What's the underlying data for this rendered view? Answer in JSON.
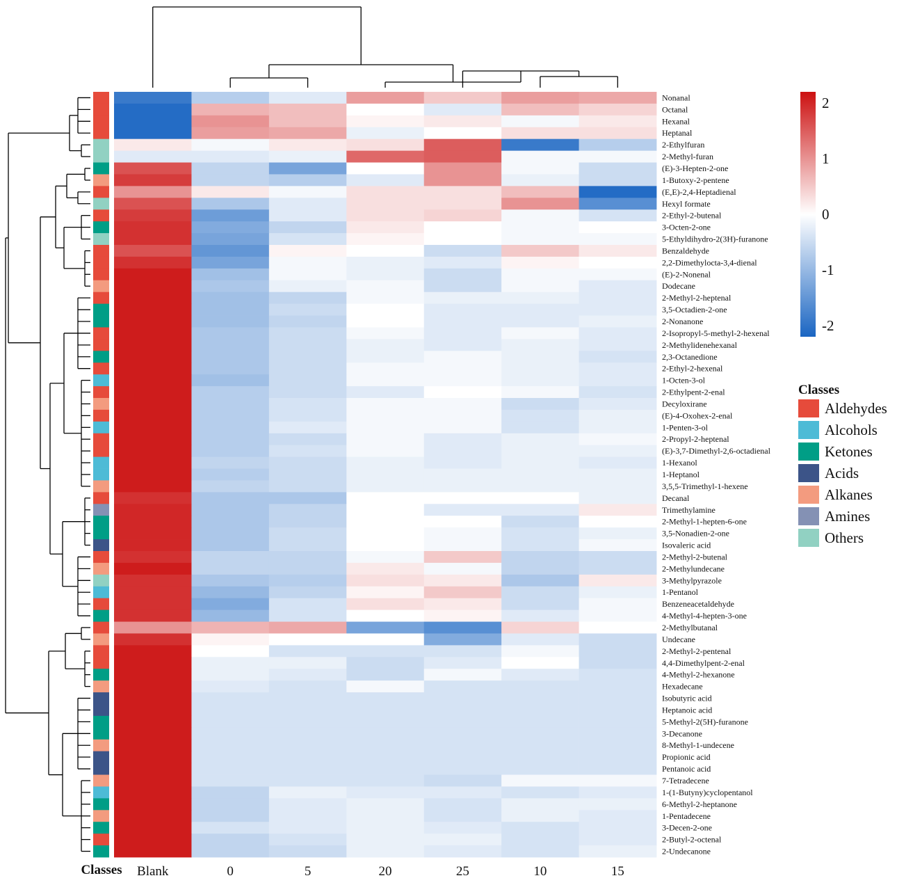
{
  "chart_data": {
    "type": "heatmap",
    "columns": [
      "Blank",
      "0",
      "5",
      "20",
      "25",
      "10",
      "15"
    ],
    "class_axis_label": "Classes",
    "rows": [
      {
        "name": "Nonanal",
        "class": "Aldehydes",
        "values": [
          -1.9,
          -0.7,
          -0.3,
          0.9,
          0.5,
          0.9,
          0.8
        ]
      },
      {
        "name": "Octanal",
        "class": "Aldehydes",
        "values": [
          -2.1,
          0.7,
          0.6,
          0.0,
          -0.3,
          0.6,
          0.4
        ]
      },
      {
        "name": "Hexanal",
        "class": "Aldehydes",
        "values": [
          -2.1,
          1.0,
          0.6,
          0.1,
          0.2,
          -0.1,
          0.2
        ]
      },
      {
        "name": "Heptanal",
        "class": "Aldehydes",
        "values": [
          -2.1,
          0.9,
          0.8,
          -0.2,
          0.0,
          0.3,
          0.3
        ]
      },
      {
        "name": "2-Ethylfuran",
        "class": "Others",
        "values": [
          0.2,
          -0.1,
          0.2,
          0.3,
          1.5,
          -1.9,
          -0.7
        ]
      },
      {
        "name": "2-Methyl-furan",
        "class": "Others",
        "values": [
          -0.3,
          -0.3,
          -0.2,
          1.4,
          1.5,
          -0.1,
          -0.1
        ]
      },
      {
        "name": "(E)-3-Hepten-2-one",
        "class": "Ketones",
        "values": [
          1.6,
          -0.6,
          -1.3,
          0.0,
          1.0,
          -0.1,
          -0.5
        ]
      },
      {
        "name": "1-Butoxy-2-pentene",
        "class": "Alkanes",
        "values": [
          1.8,
          -0.6,
          -0.7,
          -0.3,
          1.0,
          -0.2,
          -0.5
        ]
      },
      {
        "name": "(E,E)-2,4-Heptadienal",
        "class": "Aldehydes",
        "values": [
          1.0,
          0.2,
          -0.1,
          0.3,
          0.3,
          0.6,
          -2.1
        ]
      },
      {
        "name": "Hexyl formate",
        "class": "Others",
        "values": [
          1.6,
          -0.8,
          -0.3,
          0.3,
          0.3,
          1.0,
          -1.6
        ]
      },
      {
        "name": "2-Ethyl-2-butenal",
        "class": "Aldehydes",
        "values": [
          1.8,
          -1.4,
          -0.3,
          0.3,
          0.4,
          -0.1,
          -0.4
        ]
      },
      {
        "name": "3-Octen-2-one",
        "class": "Ketones",
        "values": [
          1.9,
          -1.2,
          -0.6,
          0.2,
          0.0,
          -0.1,
          0.0
        ]
      },
      {
        "name": "5-Ethyldihydro-2(3H)-furanone",
        "class": "Others",
        "values": [
          1.9,
          -1.3,
          -0.4,
          0.1,
          0.0,
          -0.1,
          -0.1
        ]
      },
      {
        "name": "Benzaldehyde",
        "class": "Aldehydes",
        "values": [
          1.6,
          -1.5,
          0.1,
          0.0,
          -0.5,
          0.5,
          0.2
        ]
      },
      {
        "name": "2,2-Dimethylocta-3,4-dienal",
        "class": "Aldehydes",
        "values": [
          1.9,
          -1.3,
          -0.1,
          -0.2,
          -0.3,
          0.1,
          0.0
        ]
      },
      {
        "name": "(E)-2-Nonenal",
        "class": "Aldehydes",
        "values": [
          2.1,
          -0.9,
          -0.1,
          -0.2,
          -0.5,
          -0.1,
          -0.1
        ]
      },
      {
        "name": "Dodecane",
        "class": "Alkanes",
        "values": [
          2.1,
          -0.8,
          -0.2,
          -0.1,
          -0.5,
          -0.1,
          -0.3
        ]
      },
      {
        "name": "2-Methyl-2-heptenal",
        "class": "Aldehydes",
        "values": [
          2.1,
          -0.9,
          -0.6,
          -0.1,
          -0.2,
          -0.2,
          -0.3
        ]
      },
      {
        "name": "3,5-Octadien-2-one",
        "class": "Ketones",
        "values": [
          2.1,
          -0.9,
          -0.5,
          0.0,
          -0.3,
          -0.3,
          -0.3
        ]
      },
      {
        "name": "2-Nonanone",
        "class": "Ketones",
        "values": [
          2.1,
          -0.9,
          -0.6,
          0.0,
          -0.3,
          -0.3,
          -0.2
        ]
      },
      {
        "name": "2-Isopropyl-5-methyl-2-hexenal",
        "class": "Aldehydes",
        "values": [
          2.1,
          -0.8,
          -0.5,
          -0.1,
          -0.3,
          -0.1,
          -0.3
        ]
      },
      {
        "name": "2-Methylidenehexanal",
        "class": "Aldehydes",
        "values": [
          2.1,
          -0.8,
          -0.5,
          -0.2,
          -0.3,
          -0.2,
          -0.3
        ]
      },
      {
        "name": "2,3-Octanedione",
        "class": "Ketones",
        "values": [
          2.1,
          -0.8,
          -0.5,
          -0.2,
          -0.1,
          -0.2,
          -0.4
        ]
      },
      {
        "name": "2-Ethyl-2-hexenal",
        "class": "Aldehydes",
        "values": [
          2.1,
          -0.8,
          -0.5,
          -0.1,
          -0.1,
          -0.2,
          -0.3
        ]
      },
      {
        "name": "1-Octen-3-ol",
        "class": "Alcohols",
        "values": [
          2.1,
          -0.9,
          -0.5,
          -0.1,
          -0.1,
          -0.2,
          -0.3
        ]
      },
      {
        "name": "2-Ethylpent-2-enal",
        "class": "Aldehydes",
        "values": [
          2.1,
          -0.7,
          -0.5,
          -0.3,
          0.0,
          -0.1,
          -0.4
        ]
      },
      {
        "name": "Decyloxirane",
        "class": "Alkanes",
        "values": [
          2.1,
          -0.7,
          -0.4,
          -0.1,
          -0.1,
          -0.5,
          -0.3
        ]
      },
      {
        "name": "(E)-4-Oxohex-2-enal",
        "class": "Aldehydes",
        "values": [
          2.1,
          -0.7,
          -0.4,
          -0.1,
          -0.1,
          -0.4,
          -0.2
        ]
      },
      {
        "name": "1-Penten-3-ol",
        "class": "Alcohols",
        "values": [
          2.1,
          -0.7,
          -0.3,
          -0.1,
          -0.1,
          -0.4,
          -0.2
        ]
      },
      {
        "name": "2-Propyl-2-heptenal",
        "class": "Aldehydes",
        "values": [
          2.1,
          -0.7,
          -0.5,
          -0.1,
          -0.3,
          -0.2,
          -0.1
        ]
      },
      {
        "name": "(E)-3,7-Dimethyl-2,6-octadienal",
        "class": "Aldehydes",
        "values": [
          2.1,
          -0.7,
          -0.4,
          -0.1,
          -0.3,
          -0.2,
          -0.2
        ]
      },
      {
        "name": "1-Hexanol",
        "class": "Alcohols",
        "values": [
          2.1,
          -0.6,
          -0.5,
          -0.2,
          -0.3,
          -0.2,
          -0.3
        ]
      },
      {
        "name": "1-Heptanol",
        "class": "Alcohols",
        "values": [
          2.1,
          -0.7,
          -0.5,
          -0.2,
          -0.2,
          -0.2,
          -0.2
        ]
      },
      {
        "name": "3,5,5-Trimethyl-1-hexene",
        "class": "Alkanes",
        "values": [
          2.1,
          -0.6,
          -0.5,
          -0.2,
          -0.2,
          -0.2,
          -0.2
        ]
      },
      {
        "name": "Decanal",
        "class": "Aldehydes",
        "values": [
          1.9,
          -0.8,
          -0.8,
          0.0,
          0.0,
          0.0,
          -0.2
        ]
      },
      {
        "name": "Trimethylamine",
        "class": "Amines",
        "values": [
          2.0,
          -0.8,
          -0.6,
          0.0,
          -0.3,
          -0.3,
          0.2
        ]
      },
      {
        "name": "2-Methyl-1-hepten-6-one",
        "class": "Ketones",
        "values": [
          2.0,
          -0.8,
          -0.6,
          0.0,
          0.0,
          -0.5,
          0.0
        ]
      },
      {
        "name": "3,5-Nonadien-2-one",
        "class": "Ketones",
        "values": [
          2.0,
          -0.8,
          -0.5,
          0.0,
          -0.1,
          -0.4,
          -0.2
        ]
      },
      {
        "name": "Isovaleric acid",
        "class": "Acids",
        "values": [
          2.0,
          -0.8,
          -0.5,
          0.0,
          -0.1,
          -0.4,
          -0.1
        ]
      },
      {
        "name": "2-Methyl-2-butenal",
        "class": "Aldehydes",
        "values": [
          1.9,
          -0.6,
          -0.6,
          -0.1,
          0.5,
          -0.6,
          -0.5
        ]
      },
      {
        "name": "2-Methylundecane",
        "class": "Alkanes",
        "values": [
          2.1,
          -0.6,
          -0.6,
          0.2,
          -0.1,
          -0.6,
          -0.5
        ]
      },
      {
        "name": "3-Methylpyrazole",
        "class": "Others",
        "values": [
          1.9,
          -0.8,
          -0.7,
          0.3,
          0.2,
          -0.8,
          0.2
        ]
      },
      {
        "name": "1-Pentanol",
        "class": "Alcohols",
        "values": [
          1.9,
          -1.0,
          -0.6,
          0.1,
          0.5,
          -0.5,
          -0.2
        ]
      },
      {
        "name": "Benzeneacetaldehyde",
        "class": "Aldehydes",
        "values": [
          1.9,
          -1.2,
          -0.4,
          0.3,
          0.2,
          -0.5,
          -0.1
        ]
      },
      {
        "name": "4-Methyl-4-hepten-3-one",
        "class": "Ketones",
        "values": [
          1.9,
          -1.0,
          -0.4,
          0.0,
          0.1,
          -0.3,
          -0.1
        ]
      },
      {
        "name": "2-Methylbutanal",
        "class": "Aldehydes",
        "values": [
          1.0,
          0.7,
          0.8,
          -1.3,
          -1.6,
          0.4,
          0.0
        ]
      },
      {
        "name": "Undecane",
        "class": "Alkanes",
        "values": [
          1.9,
          0.1,
          0.0,
          0.0,
          -1.2,
          -0.3,
          -0.5
        ]
      },
      {
        "name": "2-Methyl-2-pentenal",
        "class": "Aldehydes",
        "values": [
          2.1,
          0.0,
          -0.4,
          -0.4,
          -0.4,
          -0.1,
          -0.5
        ]
      },
      {
        "name": "4,4-Dimethylpent-2-enal",
        "class": "Aldehydes",
        "values": [
          2.1,
          -0.2,
          -0.2,
          -0.5,
          -0.3,
          0.0,
          -0.5
        ]
      },
      {
        "name": "4-Methyl-2-hexanone",
        "class": "Ketones",
        "values": [
          2.1,
          -0.2,
          -0.3,
          -0.5,
          -0.1,
          -0.3,
          -0.4
        ]
      },
      {
        "name": "Hexadecane",
        "class": "Alkanes",
        "values": [
          2.1,
          -0.3,
          -0.4,
          -0.1,
          -0.4,
          -0.4,
          -0.4
        ]
      },
      {
        "name": "Isobutyric acid",
        "class": "Acids",
        "values": [
          2.1,
          -0.4,
          -0.4,
          -0.4,
          -0.4,
          -0.4,
          -0.4
        ]
      },
      {
        "name": "Heptanoic acid",
        "class": "Acids",
        "values": [
          2.1,
          -0.4,
          -0.4,
          -0.4,
          -0.4,
          -0.4,
          -0.4
        ]
      },
      {
        "name": "5-Methyl-2(5H)-furanone",
        "class": "Ketones",
        "values": [
          2.1,
          -0.4,
          -0.4,
          -0.4,
          -0.4,
          -0.4,
          -0.4
        ]
      },
      {
        "name": "3-Decanone",
        "class": "Ketones",
        "values": [
          2.1,
          -0.4,
          -0.4,
          -0.4,
          -0.4,
          -0.4,
          -0.4
        ]
      },
      {
        "name": "8-Methyl-1-undecene",
        "class": "Alkanes",
        "values": [
          2.1,
          -0.4,
          -0.4,
          -0.4,
          -0.4,
          -0.4,
          -0.4
        ]
      },
      {
        "name": "Propionic acid",
        "class": "Acids",
        "values": [
          2.1,
          -0.4,
          -0.4,
          -0.4,
          -0.4,
          -0.4,
          -0.4
        ]
      },
      {
        "name": "Pentanoic acid",
        "class": "Acids",
        "values": [
          2.1,
          -0.4,
          -0.4,
          -0.4,
          -0.4,
          -0.4,
          -0.4
        ]
      },
      {
        "name": "7-Tetradecene",
        "class": "Alkanes",
        "values": [
          2.1,
          -0.4,
          -0.4,
          -0.4,
          -0.5,
          -0.1,
          -0.1
        ]
      },
      {
        "name": "1-(1-Butyny)cyclopentanol",
        "class": "Alcohols",
        "values": [
          2.1,
          -0.6,
          -0.2,
          -0.3,
          -0.3,
          -0.4,
          -0.3
        ]
      },
      {
        "name": "6-Methyl-2-heptanone",
        "class": "Ketones",
        "values": [
          2.1,
          -0.6,
          -0.3,
          -0.2,
          -0.4,
          -0.2,
          -0.2
        ]
      },
      {
        "name": "1-Pentadecene",
        "class": "Alkanes",
        "values": [
          2.1,
          -0.6,
          -0.3,
          -0.2,
          -0.4,
          -0.2,
          -0.3
        ]
      },
      {
        "name": "3-Decen-2-one",
        "class": "Ketones",
        "values": [
          2.1,
          -0.4,
          -0.3,
          -0.2,
          -0.3,
          -0.4,
          -0.3
        ]
      },
      {
        "name": "2-Butyl-2-octenal",
        "class": "Aldehydes",
        "values": [
          2.1,
          -0.6,
          -0.4,
          -0.2,
          -0.2,
          -0.4,
          -0.3
        ]
      },
      {
        "name": "2-Undecanone",
        "class": "Ketones",
        "values": [
          2.1,
          -0.6,
          -0.5,
          -0.2,
          -0.3,
          -0.4,
          -0.2
        ]
      }
    ],
    "color_scale": {
      "min": -2.2,
      "max": 2.2,
      "low_color": "#1a65c2",
      "mid_color": "#ffffff",
      "high_color": "#cc1111",
      "ticks": [
        {
          "value": 2,
          "label": "2"
        },
        {
          "value": 1,
          "label": "1"
        },
        {
          "value": 0,
          "label": "0"
        },
        {
          "value": -1,
          "label": "-1"
        },
        {
          "value": -2,
          "label": "-2"
        }
      ]
    },
    "legend": {
      "title": "Classes",
      "items": [
        {
          "label": "Aldehydes",
          "color": "#e64b3b"
        },
        {
          "label": "Alcohols",
          "color": "#4dbbd6"
        },
        {
          "label": "Ketones",
          "color": "#009e86"
        },
        {
          "label": "Acids",
          "color": "#3c5488"
        },
        {
          "label": "Alkanes",
          "color": "#f39b7f"
        },
        {
          "label": "Amines",
          "color": "#8491b4"
        },
        {
          "label": "Others",
          "color": "#91d1c2"
        }
      ]
    }
  }
}
